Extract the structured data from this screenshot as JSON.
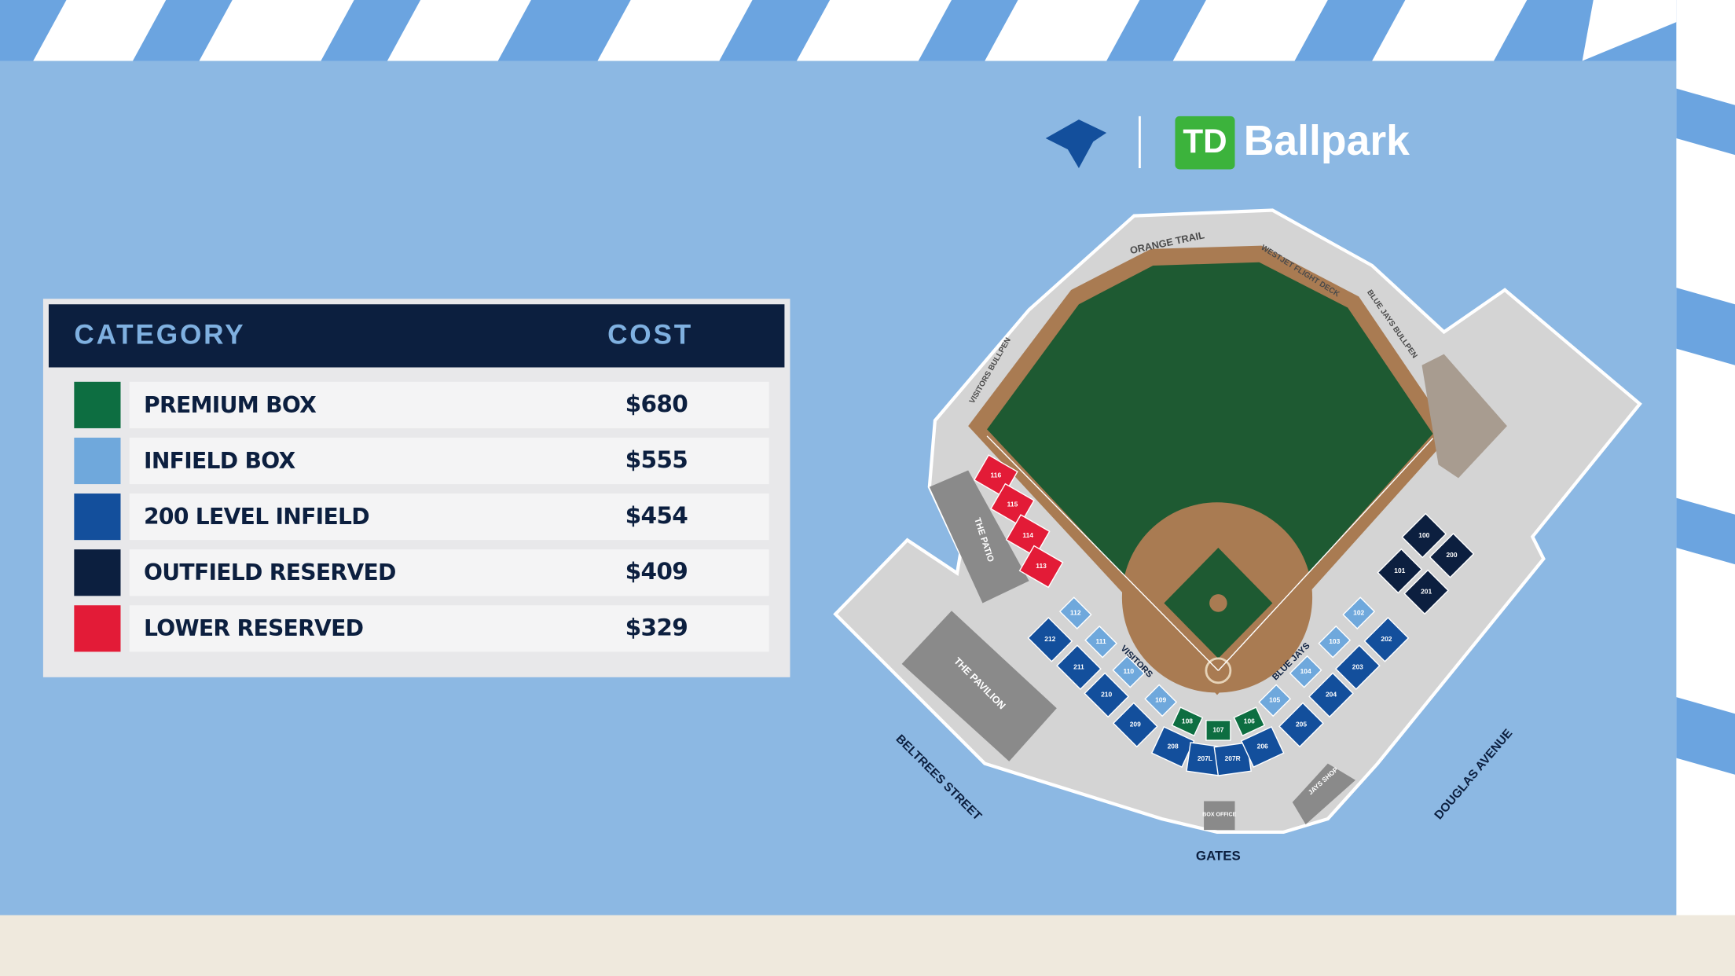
{
  "brand": {
    "logo_mark": "TD",
    "logo_text": "Ballpark"
  },
  "table": {
    "header": [
      "CATEGORY",
      "COST"
    ],
    "rows": [
      {
        "category": "PREMIUM BOX",
        "cost": "$680",
        "color": "#0d6e41"
      },
      {
        "category": "INFIELD BOX",
        "cost": "$555",
        "color": "#6fa8dc"
      },
      {
        "category": "200 LEVEL INFIELD",
        "cost": "$454",
        "color": "#134f9c"
      },
      {
        "category": "OUTFIELD RESERVED",
        "cost": "$409",
        "color": "#0c1f3f"
      },
      {
        "category": "LOWER RESERVED",
        "cost": "$329",
        "color": "#e31b37"
      }
    ]
  },
  "map": {
    "places": [
      "ORANGE TRAIL",
      "WESTJET FLIGHT DECK",
      "BLUE JAYS BULLPEN",
      "VISITORS BULLPEN",
      "THE PATIO",
      "THE PAVILION",
      "VISITORS",
      "BLUE JAYS",
      "BOX OFFICE",
      "JAYS SHOP",
      "GATES",
      "BELTREES STREET",
      "DOUGLAS AVENUE"
    ],
    "sections": [
      {
        "label": "116",
        "color": "#e31b37"
      },
      {
        "label": "115",
        "color": "#e31b37"
      },
      {
        "label": "114",
        "color": "#e31b37"
      },
      {
        "label": "113",
        "color": "#e31b37"
      },
      {
        "label": "112",
        "color": "#6fa8dc"
      },
      {
        "label": "111",
        "color": "#6fa8dc"
      },
      {
        "label": "110",
        "color": "#6fa8dc"
      },
      {
        "label": "109",
        "color": "#6fa8dc"
      },
      {
        "label": "105",
        "color": "#6fa8dc"
      },
      {
        "label": "104",
        "color": "#6fa8dc"
      },
      {
        "label": "103",
        "color": "#6fa8dc"
      },
      {
        "label": "102",
        "color": "#6fa8dc"
      },
      {
        "label": "212",
        "color": "#134f9c"
      },
      {
        "label": "211",
        "color": "#134f9c"
      },
      {
        "label": "210",
        "color": "#134f9c"
      },
      {
        "label": "209",
        "color": "#134f9c"
      },
      {
        "label": "208",
        "color": "#134f9c"
      },
      {
        "label": "207L",
        "color": "#134f9c"
      },
      {
        "label": "207R",
        "color": "#134f9c"
      },
      {
        "label": "206",
        "color": "#134f9c"
      },
      {
        "label": "205",
        "color": "#134f9c"
      },
      {
        "label": "204",
        "color": "#134f9c"
      },
      {
        "label": "203",
        "color": "#134f9c"
      },
      {
        "label": "202",
        "color": "#134f9c"
      },
      {
        "label": "108",
        "color": "#0d6e41"
      },
      {
        "label": "107",
        "color": "#0d6e41"
      },
      {
        "label": "106",
        "color": "#0d6e41"
      },
      {
        "label": "100",
        "color": "#0c1f3f"
      },
      {
        "label": "200",
        "color": "#0c1f3f"
      },
      {
        "label": "101",
        "color": "#0c1f3f"
      },
      {
        "label": "201",
        "color": "#0c1f3f"
      }
    ]
  }
}
